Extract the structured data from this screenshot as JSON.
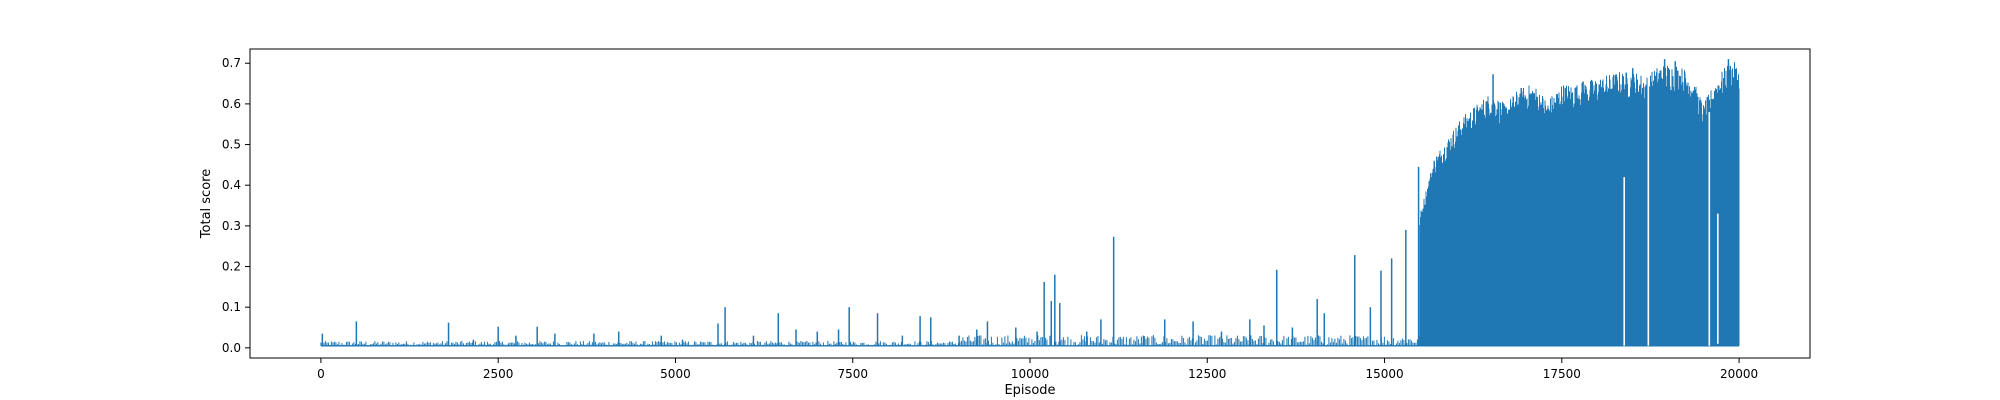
{
  "chart_data": {
    "type": "line",
    "title": "",
    "xlabel": "Episode",
    "ylabel": "Total score",
    "xlim": [
      -1000,
      21000
    ],
    "ylim": [
      -0.025,
      0.735
    ],
    "xticks": [
      0,
      2500,
      5000,
      7500,
      10000,
      12500,
      15000,
      17500,
      20000
    ],
    "xtick_labels": [
      "0",
      "2500",
      "5000",
      "7500",
      "10000",
      "12500",
      "15000",
      "17500",
      "20000"
    ],
    "yticks": [
      0.0,
      0.1,
      0.2,
      0.3,
      0.4,
      0.5,
      0.6,
      0.7
    ],
    "ytick_labels": [
      "0.0",
      "0.1",
      "0.2",
      "0.3",
      "0.4",
      "0.5",
      "0.6",
      "0.7"
    ],
    "grid": false,
    "legend": "none",
    "series": [
      {
        "name": "",
        "color": "#1f77b4",
        "baseline": 0.005,
        "x_range": [
          0,
          20000
        ],
        "spikes": [
          {
            "x": 20,
            "y": 0.035
          },
          {
            "x": 500,
            "y": 0.065
          },
          {
            "x": 1800,
            "y": 0.062
          },
          {
            "x": 2150,
            "y": 0.02
          },
          {
            "x": 2500,
            "y": 0.052
          },
          {
            "x": 2750,
            "y": 0.03
          },
          {
            "x": 3050,
            "y": 0.052
          },
          {
            "x": 3300,
            "y": 0.035
          },
          {
            "x": 3850,
            "y": 0.035
          },
          {
            "x": 4200,
            "y": 0.04
          },
          {
            "x": 4800,
            "y": 0.03
          },
          {
            "x": 5100,
            "y": 0.02
          },
          {
            "x": 5600,
            "y": 0.06
          },
          {
            "x": 5700,
            "y": 0.1
          },
          {
            "x": 6100,
            "y": 0.03
          },
          {
            "x": 6450,
            "y": 0.085
          },
          {
            "x": 6700,
            "y": 0.045
          },
          {
            "x": 7000,
            "y": 0.04
          },
          {
            "x": 7300,
            "y": 0.045
          },
          {
            "x": 7450,
            "y": 0.1
          },
          {
            "x": 7850,
            "y": 0.085
          },
          {
            "x": 8200,
            "y": 0.03
          },
          {
            "x": 8450,
            "y": 0.078
          },
          {
            "x": 8600,
            "y": 0.075
          },
          {
            "x": 9000,
            "y": 0.03
          },
          {
            "x": 9250,
            "y": 0.045
          },
          {
            "x": 9400,
            "y": 0.065
          },
          {
            "x": 9800,
            "y": 0.05
          },
          {
            "x": 10100,
            "y": 0.04
          },
          {
            "x": 10200,
            "y": 0.162
          },
          {
            "x": 10300,
            "y": 0.115
          },
          {
            "x": 10350,
            "y": 0.18
          },
          {
            "x": 10420,
            "y": 0.11
          },
          {
            "x": 10800,
            "y": 0.04
          },
          {
            "x": 11000,
            "y": 0.07
          },
          {
            "x": 11180,
            "y": 0.273
          },
          {
            "x": 11600,
            "y": 0.03
          },
          {
            "x": 11900,
            "y": 0.07
          },
          {
            "x": 12300,
            "y": 0.065
          },
          {
            "x": 12700,
            "y": 0.04
          },
          {
            "x": 13100,
            "y": 0.07
          },
          {
            "x": 13300,
            "y": 0.055
          },
          {
            "x": 13480,
            "y": 0.192
          },
          {
            "x": 13700,
            "y": 0.05
          },
          {
            "x": 14050,
            "y": 0.12
          },
          {
            "x": 14150,
            "y": 0.085
          },
          {
            "x": 14580,
            "y": 0.228
          },
          {
            "x": 14800,
            "y": 0.1
          },
          {
            "x": 14950,
            "y": 0.19
          },
          {
            "x": 15100,
            "y": 0.22
          },
          {
            "x": 15300,
            "y": 0.29
          },
          {
            "x": 15480,
            "y": 0.445
          }
        ],
        "dense_envelope": [
          {
            "x": 15500,
            "y": 0.33
          },
          {
            "x": 15700,
            "y": 0.47
          },
          {
            "x": 15900,
            "y": 0.52
          },
          {
            "x": 16100,
            "y": 0.57
          },
          {
            "x": 16300,
            "y": 0.6
          },
          {
            "x": 16500,
            "y": 0.63
          },
          {
            "x": 16700,
            "y": 0.6
          },
          {
            "x": 16900,
            "y": 0.64
          },
          {
            "x": 17100,
            "y": 0.65
          },
          {
            "x": 17300,
            "y": 0.61
          },
          {
            "x": 17500,
            "y": 0.65
          },
          {
            "x": 17700,
            "y": 0.65
          },
          {
            "x": 17900,
            "y": 0.66
          },
          {
            "x": 18100,
            "y": 0.67
          },
          {
            "x": 18300,
            "y": 0.68
          },
          {
            "x": 18500,
            "y": 0.68
          },
          {
            "x": 18700,
            "y": 0.67
          },
          {
            "x": 18900,
            "y": 0.7
          },
          {
            "x": 19100,
            "y": 0.7
          },
          {
            "x": 19300,
            "y": 0.68
          },
          {
            "x": 19500,
            "y": 0.6
          },
          {
            "x": 19700,
            "y": 0.67
          },
          {
            "x": 19900,
            "y": 0.71
          },
          {
            "x": 20000,
            "y": 0.69
          }
        ],
        "peaks": [
          {
            "x": 16530,
            "y": 0.673
          },
          {
            "x": 17800,
            "y": 0.655
          },
          {
            "x": 18500,
            "y": 0.688
          },
          {
            "x": 18950,
            "y": 0.71
          },
          {
            "x": 19100,
            "y": 0.705
          },
          {
            "x": 19850,
            "y": 0.71
          }
        ],
        "gaps": [
          {
            "x": 18380,
            "lo": 0.005,
            "hi": 0.42
          },
          {
            "x": 18720,
            "lo": 0.005,
            "hi": 0.68
          },
          {
            "x": 19580,
            "lo": 0.005,
            "hi": 0.58
          },
          {
            "x": 19700,
            "lo": 0.01,
            "hi": 0.33
          }
        ]
      }
    ]
  }
}
